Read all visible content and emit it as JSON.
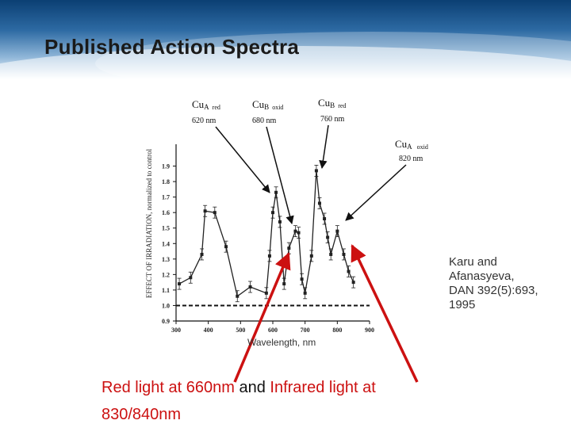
{
  "slide": {
    "title": "Published Action Spectra",
    "citation": [
      "Karu and",
      "Afanasyeva,",
      "DAN 392(5):693,",
      "1995"
    ],
    "bottom": {
      "part1": "Red light at 660nm",
      "part2": "and",
      "part3": "Infrared light at",
      "part4": "830/840nm"
    }
  },
  "colors": {
    "arrow": "#cc1111",
    "series": "#222222",
    "baseline": "#111111"
  },
  "chart_data": {
    "type": "line",
    "xlabel": "Wavelength, nm",
    "ylabel": "EFFECT OF IRRADIATION, normalized to control",
    "xlim": [
      300,
      900
    ],
    "ylim": [
      0.9,
      2.0
    ],
    "xticks": [
      300,
      400,
      500,
      600,
      700,
      800,
      900
    ],
    "yticks": [
      0.9,
      1.0,
      1.1,
      1.2,
      1.3,
      1.4,
      1.5,
      1.6,
      1.7,
      1.8,
      1.9
    ],
    "baseline": 1.0,
    "series": [
      {
        "x": [
          310,
          345,
          380,
          390,
          420,
          455,
          490,
          530,
          580,
          590,
          600,
          610,
          622,
          635,
          650,
          670,
          680,
          690,
          700,
          720,
          735,
          745,
          760,
          770,
          780,
          800,
          820,
          835,
          850
        ],
        "y": [
          1.14,
          1.18,
          1.33,
          1.61,
          1.6,
          1.38,
          1.06,
          1.12,
          1.08,
          1.32,
          1.6,
          1.73,
          1.54,
          1.14,
          1.37,
          1.48,
          1.47,
          1.17,
          1.08,
          1.32,
          1.87,
          1.66,
          1.56,
          1.44,
          1.33,
          1.48,
          1.33,
          1.22,
          1.15
        ]
      }
    ],
    "annotations": [
      {
        "label": "CuA red",
        "sub": "620 nm"
      },
      {
        "label": "CuB oxid",
        "sub": "680 nm"
      },
      {
        "label": "CuB red",
        "sub": "760 nm"
      },
      {
        "label": "CuA oxid",
        "sub": "820 nm"
      }
    ]
  }
}
